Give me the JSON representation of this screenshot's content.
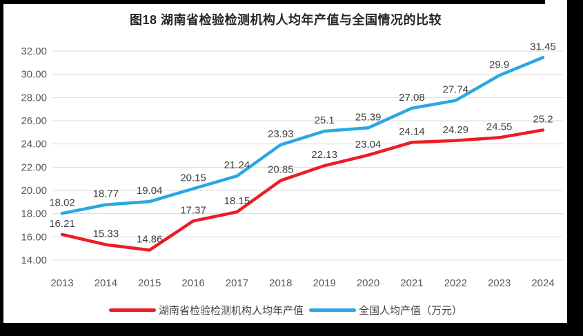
{
  "chart_data": {
    "type": "line",
    "title": "图18 湖南省检验检测机构人均年产值与全国情况的比较",
    "categories": [
      "2013",
      "2014",
      "2015",
      "2016",
      "2017",
      "2018",
      "2019",
      "2020",
      "2021",
      "2022",
      "2023",
      "2024"
    ],
    "series": [
      {
        "name": "湖南省检验检测机构人均年产值",
        "color": "#ed1c24",
        "values": [
          16.21,
          15.33,
          14.86,
          17.37,
          18.15,
          20.85,
          22.13,
          23.04,
          24.14,
          24.29,
          24.55,
          25.2
        ]
      },
      {
        "name": "全国人均产值（万元）",
        "color": "#29a8e1",
        "values": [
          18.02,
          18.77,
          19.04,
          20.15,
          21.24,
          23.93,
          25.1,
          25.39,
          27.08,
          27.74,
          29.9,
          31.45
        ]
      }
    ],
    "y_ticks": [
      "14.00",
      "16.00",
      "18.00",
      "20.00",
      "22.00",
      "24.00",
      "26.00",
      "28.00",
      "30.00",
      "32.00"
    ],
    "ylim": [
      14,
      32
    ],
    "grid": true,
    "grid_color": "#d9d9d9",
    "axis_text_color": "#595959",
    "data_label_color": "#404040",
    "frame_color": "#000000",
    "legend_position": "bottom"
  }
}
